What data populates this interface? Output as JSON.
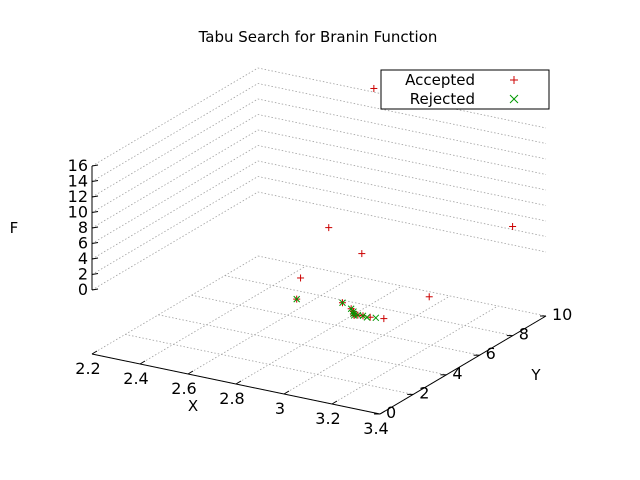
{
  "chart_data": {
    "type": "scatter",
    "title": "Tabu Search for Branin Function",
    "xlabel": "X",
    "ylabel": "Y",
    "zlabel": "F",
    "xlim": [
      2.2,
      3.4
    ],
    "ylim": [
      0,
      10
    ],
    "zlim": [
      0,
      16
    ],
    "x_ticks": [
      "2.2",
      "2.4",
      "2.6",
      "2.8",
      "3",
      "3.2",
      "3.4"
    ],
    "y_ticks": [
      "0",
      "2",
      "4",
      "6",
      "8",
      "10"
    ],
    "z_ticks": [
      "0",
      "2",
      "4",
      "6",
      "8",
      "10",
      "12",
      "14",
      "16"
    ],
    "grid": true,
    "legend_position": "top-right",
    "legend": [
      "Accepted",
      "Rejected"
    ],
    "colors": {
      "accepted": "#cc0000",
      "rejected": "#009900"
    },
    "series": [
      {
        "name": "Accepted",
        "marker": "plus",
        "points": [
          {
            "x": 2.7,
            "y": 9.75,
            "z": 16.9
          },
          {
            "x": 3.33,
            "y": 9.0,
            "z": 4.1
          },
          {
            "x": 2.93,
            "y": 5.7,
            "z": 2.2
          },
          {
            "x": 2.64,
            "y": 7.9,
            "z": 0.9
          },
          {
            "x": 2.82,
            "y": 3.6,
            "z": 1.0
          },
          {
            "x": 3.28,
            "y": 4.7,
            "z": 0.15
          },
          {
            "x": 2.88,
            "y": 2.5,
            "z": 0.05
          },
          {
            "x": 3.05,
            "y": 2.8,
            "z": 0.3
          },
          {
            "x": 3.1,
            "y": 2.6,
            "z": 0.1
          },
          {
            "x": 3.12,
            "y": 2.45,
            "z": 0.05
          },
          {
            "x": 3.13,
            "y": 2.3,
            "z": 0.02
          },
          {
            "x": 3.14,
            "y": 2.2,
            "z": 0.0
          },
          {
            "x": 3.15,
            "y": 2.28,
            "z": 0.01
          },
          {
            "x": 3.17,
            "y": 2.3,
            "z": 0.02
          },
          {
            "x": 3.2,
            "y": 2.3,
            "z": 0.03
          },
          {
            "x": 3.25,
            "y": 2.4,
            "z": 0.05
          }
        ]
      },
      {
        "name": "Rejected",
        "marker": "cross",
        "points": [
          {
            "x": 2.88,
            "y": 2.5,
            "z": 0.05
          },
          {
            "x": 3.05,
            "y": 2.8,
            "z": 0.3
          },
          {
            "x": 3.1,
            "y": 2.6,
            "z": 0.1
          },
          {
            "x": 3.12,
            "y": 2.45,
            "z": 0.05
          },
          {
            "x": 3.13,
            "y": 2.3,
            "z": 0.02
          },
          {
            "x": 3.14,
            "y": 2.2,
            "z": 0.0
          },
          {
            "x": 3.15,
            "y": 2.28,
            "z": 0.01
          },
          {
            "x": 3.17,
            "y": 2.3,
            "z": 0.02
          },
          {
            "x": 3.19,
            "y": 2.25,
            "z": 0.01
          },
          {
            "x": 3.22,
            "y": 2.35,
            "z": 0.02
          }
        ]
      }
    ]
  }
}
